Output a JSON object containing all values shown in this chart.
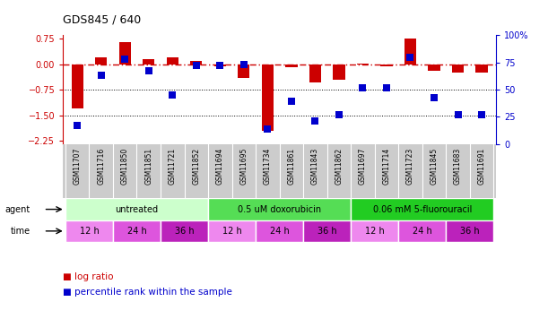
{
  "title": "GDS845 / 640",
  "samples": [
    "GSM11707",
    "GSM11716",
    "GSM11850",
    "GSM11851",
    "GSM11721",
    "GSM11852",
    "GSM11694",
    "GSM11695",
    "GSM11734",
    "GSM11861",
    "GSM11843",
    "GSM11862",
    "GSM11697",
    "GSM11714",
    "GSM11723",
    "GSM11845",
    "GSM11683",
    "GSM11691"
  ],
  "log_ratio": [
    -1.3,
    0.2,
    0.65,
    0.15,
    0.2,
    0.1,
    -0.05,
    -0.4,
    -1.95,
    -0.1,
    -0.55,
    -0.45,
    0.02,
    -0.05,
    0.75,
    -0.2,
    -0.25,
    -0.25
  ],
  "percentile": [
    17,
    63,
    78,
    67,
    45,
    72,
    72,
    73,
    14,
    39,
    21,
    27,
    52,
    52,
    80,
    43,
    27,
    27
  ],
  "bar_color": "#cc0000",
  "dot_color": "#0000cc",
  "hline_color": "#cc0000",
  "dotted_line_color": "#000000",
  "hline_y": 0,
  "dotted_lines": [
    -0.75,
    -1.5
  ],
  "ylim_left": [
    -2.35,
    0.85
  ],
  "ylim_right": [
    0,
    100
  ],
  "yticks_left": [
    0.75,
    0,
    -0.75,
    -1.5,
    -2.25
  ],
  "yticks_right": [
    100,
    75,
    50,
    25,
    0
  ],
  "ytick_labels_right": [
    "100%",
    "75",
    "50",
    "25",
    "0"
  ],
  "ylabel_left_color": "#cc0000",
  "ylabel_right_color": "#0000cc",
  "agent_groups": [
    {
      "label": "untreated",
      "start": 0,
      "end": 6,
      "color": "#ccffcc"
    },
    {
      "label": "0.5 uM doxorubicin",
      "start": 6,
      "end": 12,
      "color": "#55dd55"
    },
    {
      "label": "0.06 mM 5-fluorouracil",
      "start": 12,
      "end": 18,
      "color": "#22cc22"
    }
  ],
  "time_groups": [
    {
      "label": "12 h",
      "start": 0,
      "end": 2,
      "color": "#ee88ee"
    },
    {
      "label": "24 h",
      "start": 2,
      "end": 4,
      "color": "#dd55dd"
    },
    {
      "label": "36 h",
      "start": 4,
      "end": 6,
      "color": "#bb22bb"
    },
    {
      "label": "12 h",
      "start": 6,
      "end": 8,
      "color": "#ee88ee"
    },
    {
      "label": "24 h",
      "start": 8,
      "end": 10,
      "color": "#dd55dd"
    },
    {
      "label": "36 h",
      "start": 10,
      "end": 12,
      "color": "#bb22bb"
    },
    {
      "label": "12 h",
      "start": 12,
      "end": 14,
      "color": "#ee88ee"
    },
    {
      "label": "24 h",
      "start": 14,
      "end": 16,
      "color": "#dd55dd"
    },
    {
      "label": "36 h",
      "start": 16,
      "end": 18,
      "color": "#bb22bb"
    }
  ],
  "legend_log_ratio": "log ratio",
  "legend_percentile": "percentile rank within the sample",
  "bg_color": "#ffffff",
  "plot_bg_color": "#ffffff",
  "bar_width": 0.5,
  "dot_size": 35,
  "sample_bg_color": "#cccccc"
}
